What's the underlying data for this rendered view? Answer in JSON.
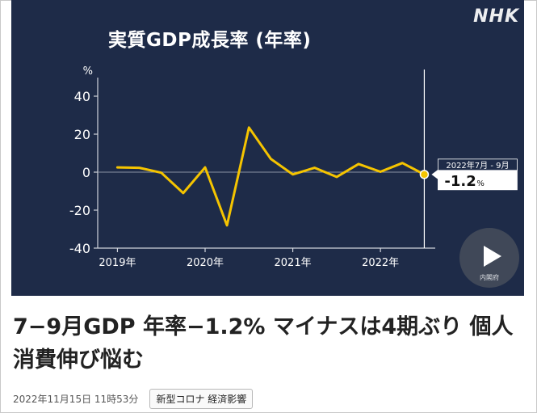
{
  "brand": {
    "logo_text": "NHK"
  },
  "chart_data": {
    "type": "line",
    "title": "実質GDP成長率 (年率)",
    "ylabel": "%",
    "ylim": [
      -40,
      40
    ],
    "yticks": [
      40,
      20,
      0,
      -20,
      -40
    ],
    "ytick_labels": [
      "40",
      "20",
      "0",
      "-20",
      "-40"
    ],
    "xtick_labels": [
      "2019年",
      "2020年",
      "2021年",
      "2022年"
    ],
    "xtick_positions": [
      1,
      5,
      9,
      13
    ],
    "x": [
      1,
      2,
      3,
      4,
      5,
      6,
      7,
      8,
      9,
      10,
      11,
      12,
      13,
      14,
      15
    ],
    "xlim": [
      0.1,
      15.5
    ],
    "series": [
      {
        "values": [
          2.5,
          2.3,
          -0.3,
          -11,
          2.5,
          -28,
          23.5,
          7,
          -1.2,
          2.3,
          -2.5,
          4.3,
          0.2,
          4.8,
          -1.2
        ]
      }
    ],
    "line_color": "#f5c400",
    "annotation": {
      "period": "2022年7月 - 9月",
      "value": "-1.2",
      "unit": "%"
    },
    "grid": false
  },
  "player": {
    "source_label": "内閣府"
  },
  "article": {
    "headline": "7−9月GDP 年率−1.2% マイナスは4期ぶり 個人消費伸び悩む",
    "date": "2022年11月15日 11時53分",
    "tag": "新型コロナ 経済影響"
  }
}
